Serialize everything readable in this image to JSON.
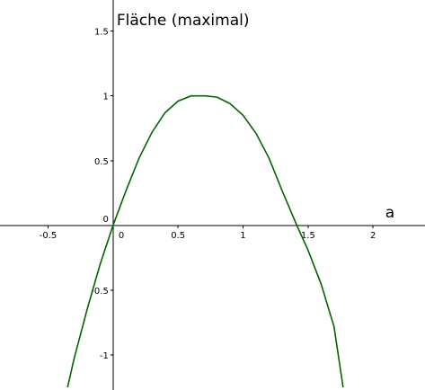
{
  "chart_data": {
    "type": "line",
    "title": "",
    "xlabel": "a",
    "ylabel": "Fläche (maximal)",
    "xlim": [
      -0.87,
      2.4
    ],
    "ylim": [
      -1.27,
      1.74
    ],
    "grid": false,
    "x_ticks": [
      {
        "value": -0.5,
        "label": "-0.5"
      },
      {
        "value": 0,
        "label": "0"
      },
      {
        "value": 0.5,
        "label": "0.5"
      },
      {
        "value": 1,
        "label": "1"
      },
      {
        "value": 1.5,
        "label": "1.5"
      },
      {
        "value": 2,
        "label": "2"
      }
    ],
    "y_ticks": [
      {
        "value": -1,
        "label": "-1"
      },
      {
        "value": -0.5,
        "label": "-0.5"
      },
      {
        "value": 0,
        "label": "0"
      },
      {
        "value": 0.5,
        "label": "0.5"
      },
      {
        "value": 1,
        "label": "1"
      },
      {
        "value": 1.5,
        "label": "1.5"
      }
    ],
    "series": [
      {
        "color": "#006400",
        "x": [
          -0.35,
          -0.3,
          -0.2,
          -0.1,
          0,
          0.1,
          0.2,
          0.3,
          0.4,
          0.5,
          0.6,
          0.707,
          0.8,
          0.9,
          1.0,
          1.1,
          1.2,
          1.3,
          1.414,
          1.5,
          1.6,
          1.7,
          1.77
        ],
        "y": [
          -1.25,
          -1.03,
          -0.65,
          -0.3,
          0,
          0.27,
          0.52,
          0.72,
          0.87,
          0.96,
          1.0,
          1.0,
          0.99,
          0.94,
          0.85,
          0.71,
          0.52,
          0.27,
          0,
          -0.19,
          -0.45,
          -0.78,
          -1.25
        ]
      }
    ]
  }
}
